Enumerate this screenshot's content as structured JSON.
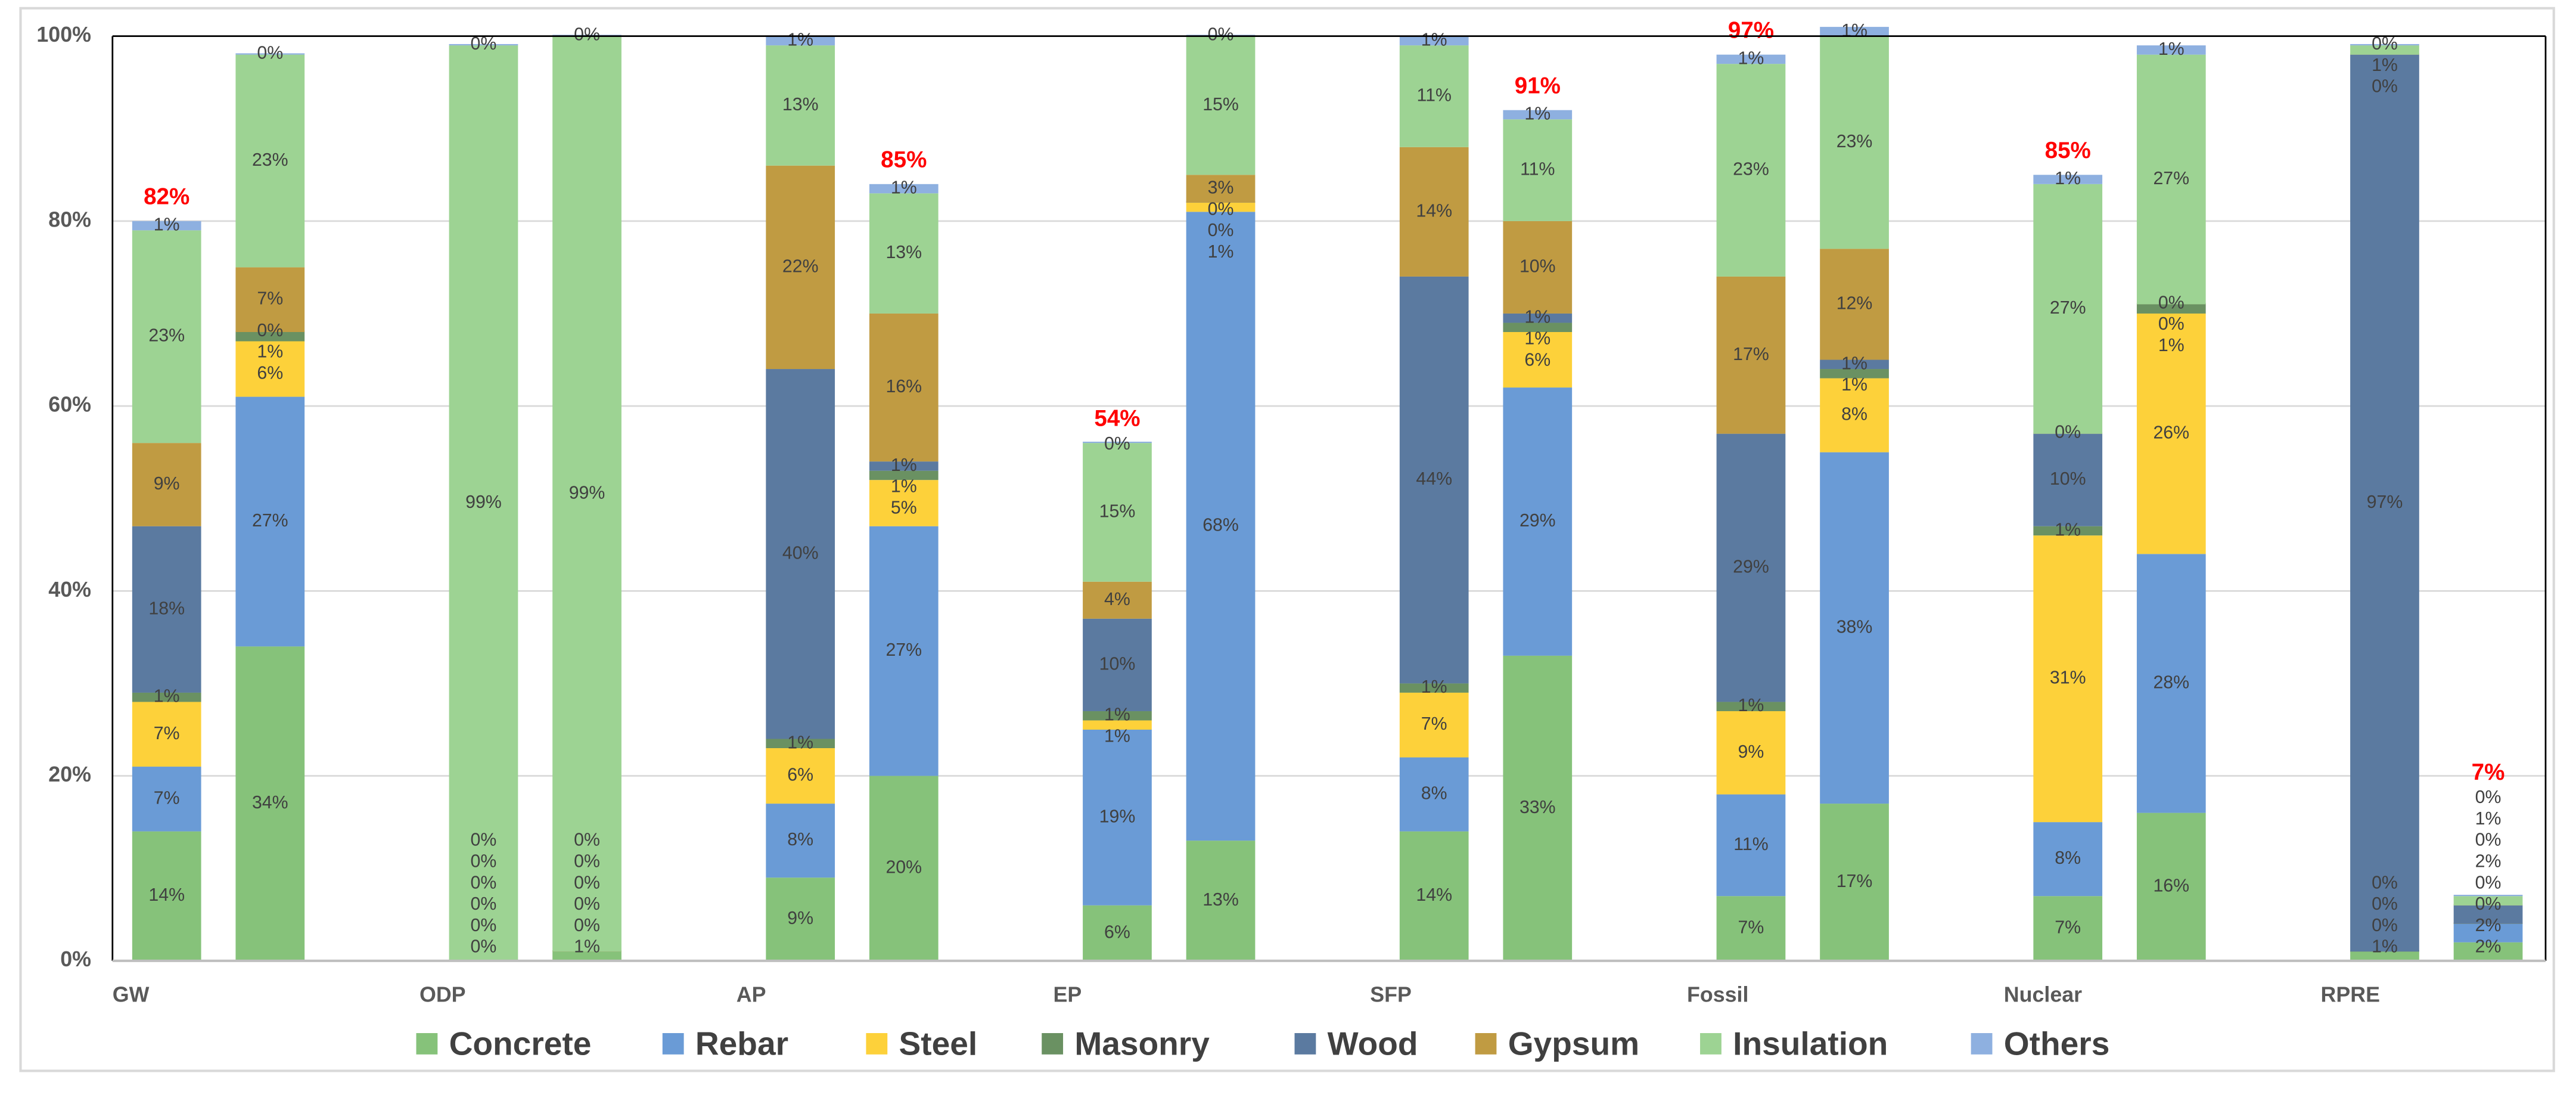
{
  "chart_data": {
    "type": "bar",
    "stacked": true,
    "title": "",
    "xlabel": "",
    "ylabel": "",
    "ylim": [
      0,
      100
    ],
    "y_ticks": [
      "0%",
      "20%",
      "40%",
      "60%",
      "80%",
      "100%"
    ],
    "grid": true,
    "legend_position": "bottom",
    "categories": [
      "GW",
      "ODP",
      "AP",
      "EP",
      "SFP",
      "Fossil",
      "Nuclear",
      "RPRE"
    ],
    "bars_per_category": 2,
    "series_names": [
      "Concrete",
      "Rebar",
      "Steel",
      "Masonry",
      "Wood",
      "Gypsum",
      "Insulation",
      "Others"
    ],
    "series_colors": [
      "#86c27a",
      "#6a9bd6",
      "#fdd13a",
      "#6a9162",
      "#5b7aa0",
      "#c09b42",
      "#9dd393",
      "#8eb0e0"
    ],
    "bars": [
      {
        "category": "GW",
        "values": [
          14,
          7,
          7,
          1,
          18,
          9,
          23,
          1
        ],
        "total_label": "82%"
      },
      {
        "category": "GW",
        "values": [
          34,
          27,
          6,
          1,
          0,
          7,
          23,
          0
        ],
        "total_label": ""
      },
      {
        "category": "ODP",
        "values": [
          0,
          0,
          0,
          0,
          0,
          0,
          99,
          0
        ],
        "total_label": ""
      },
      {
        "category": "ODP",
        "values": [
          1,
          0,
          0,
          0,
          0,
          0,
          99,
          0
        ],
        "total_label": ""
      },
      {
        "category": "AP",
        "values": [
          9,
          8,
          6,
          1,
          40,
          22,
          13,
          1
        ],
        "total_label": ""
      },
      {
        "category": "AP",
        "values": [
          20,
          27,
          5,
          1,
          1,
          16,
          13,
          1
        ],
        "total_label": "85%"
      },
      {
        "category": "EP",
        "values": [
          6,
          19,
          1,
          1,
          10,
          4,
          15,
          0
        ],
        "total_label": "54%"
      },
      {
        "category": "EP",
        "values": [
          13,
          68,
          1,
          0,
          0,
          3,
          15,
          0
        ],
        "total_label": ""
      },
      {
        "category": "SFP",
        "values": [
          14,
          8,
          7,
          1,
          44,
          14,
          11,
          1
        ],
        "total_label": ""
      },
      {
        "category": "SFP",
        "values": [
          33,
          29,
          6,
          1,
          1,
          10,
          11,
          1
        ],
        "total_label": "91%"
      },
      {
        "category": "Fossil",
        "values": [
          7,
          11,
          9,
          1,
          29,
          17,
          23,
          1
        ],
        "total_label": "97%"
      },
      {
        "category": "Fossil",
        "values": [
          17,
          38,
          8,
          1,
          1,
          12,
          23,
          1
        ],
        "total_label": ""
      },
      {
        "category": "Nuclear",
        "values": [
          7,
          8,
          31,
          1,
          10,
          0,
          27,
          1
        ],
        "total_label": "85%"
      },
      {
        "category": "Nuclear",
        "values": [
          16,
          28,
          26,
          1,
          0,
          0,
          27,
          1
        ],
        "total_label": ""
      },
      {
        "category": "RPRE",
        "values": [
          1,
          0,
          0,
          0,
          97,
          0,
          1,
          0
        ],
        "total_label": ""
      },
      {
        "category": "RPRE",
        "values": [
          2,
          2,
          0,
          0,
          2,
          0,
          1,
          0
        ],
        "total_label": "7%"
      }
    ]
  }
}
